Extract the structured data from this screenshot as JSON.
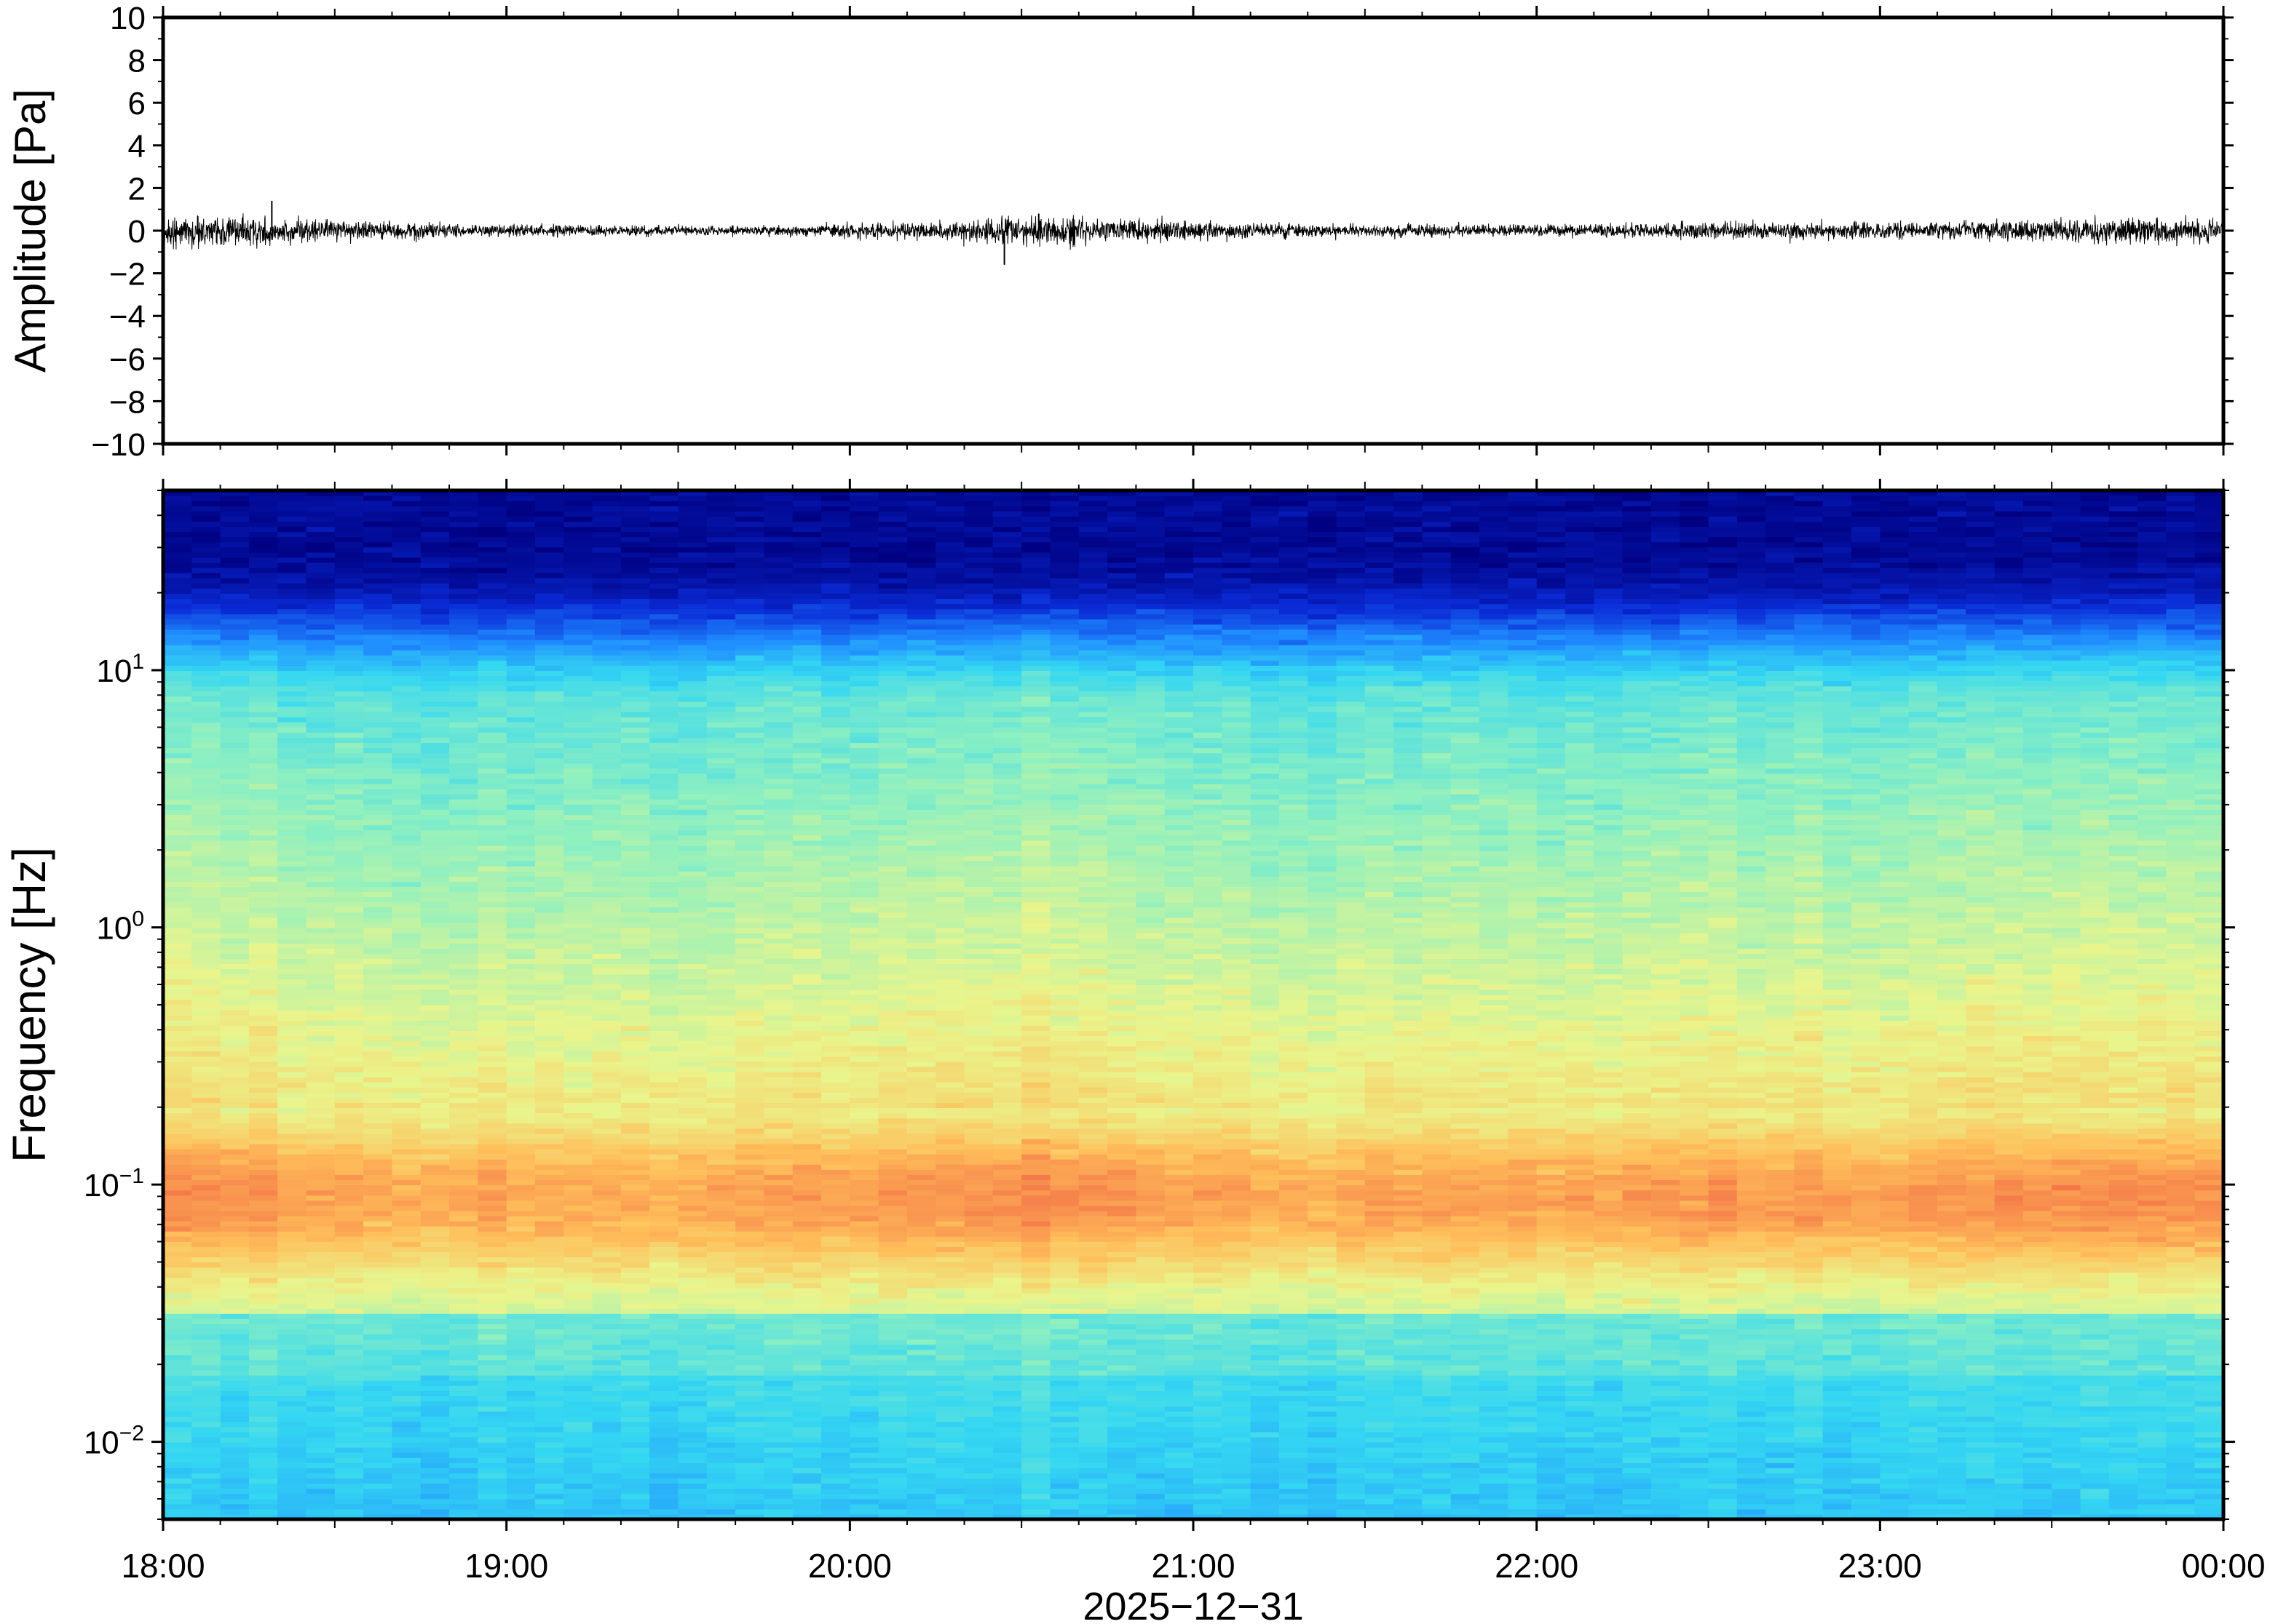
{
  "chart_data": [
    {
      "type": "line",
      "panel": "waveform",
      "ylabel": "Amplitude [Pa]",
      "ylim": [
        -10,
        10
      ],
      "yticks": [
        10,
        8,
        6,
        4,
        2,
        0,
        -2,
        -4,
        -6,
        -8,
        -10
      ],
      "ytick_labels": [
        "10",
        "8",
        "6",
        "4",
        "2",
        "0",
        "−2",
        "−4",
        "−6",
        "−8",
        "−10"
      ],
      "xlim": [
        "18:00",
        "00:00"
      ],
      "series_color": "#000000",
      "envelope": {
        "x": [
          "18:00",
          "18:15",
          "18:30",
          "18:45",
          "19:00",
          "19:15",
          "19:30",
          "19:45",
          "20:00",
          "20:15",
          "20:30",
          "20:45",
          "21:00",
          "21:15",
          "21:30",
          "21:45",
          "22:00",
          "22:15",
          "22:30",
          "22:45",
          "23:00",
          "23:15",
          "23:30",
          "23:45",
          "00:00"
        ],
        "amplitude": [
          0.8,
          0.7,
          0.5,
          0.4,
          0.3,
          0.3,
          0.25,
          0.25,
          0.35,
          0.45,
          0.7,
          0.6,
          0.45,
          0.35,
          0.3,
          0.3,
          0.3,
          0.35,
          0.45,
          0.45,
          0.4,
          0.45,
          0.55,
          0.65,
          0.6
        ]
      },
      "spikes": [
        {
          "x": "18:19",
          "y": 1.4
        },
        {
          "x": "20:27",
          "y": -1.6
        },
        {
          "x": "20:33",
          "y": 0.8
        }
      ]
    },
    {
      "type": "heatmap",
      "panel": "spectrogram",
      "ylabel": "Frequency [Hz]",
      "yscale": "log",
      "ylim": [
        0.005,
        50
      ],
      "yticks": [
        0.01,
        0.1,
        1,
        10
      ],
      "ytick_labels": [
        {
          "base": "10",
          "exp": "−2"
        },
        {
          "base": "10",
          "exp": "−1"
        },
        {
          "base": "10",
          "exp": "0"
        },
        {
          "base": "10",
          "exp": "1"
        }
      ],
      "xlim": [
        "18:00",
        "00:00"
      ],
      "xticks": [
        "18:00",
        "19:00",
        "20:00",
        "21:00",
        "22:00",
        "23:00",
        "00:00"
      ],
      "xlabel": "2025−12−31",
      "colormap": [
        "#000080",
        "#0a2bd6",
        "#1f8cff",
        "#34d7f2",
        "#8ff0c0",
        "#e9f58c",
        "#ffbe5a",
        "#f47848",
        "#d73b3b"
      ],
      "description_levels": "relative power, low-to-high mapped onto colormap",
      "peak_band_hz": [
        0.04,
        0.2
      ],
      "time_activity": [
        0.9,
        0.75,
        0.5,
        0.45,
        0.4,
        0.35,
        0.4,
        0.5,
        0.55,
        0.65,
        0.85,
        0.8,
        0.6,
        0.45,
        0.45,
        0.5,
        0.55,
        0.6,
        0.7,
        0.65,
        0.6,
        0.65,
        0.8,
        0.9,
        0.85
      ]
    }
  ]
}
